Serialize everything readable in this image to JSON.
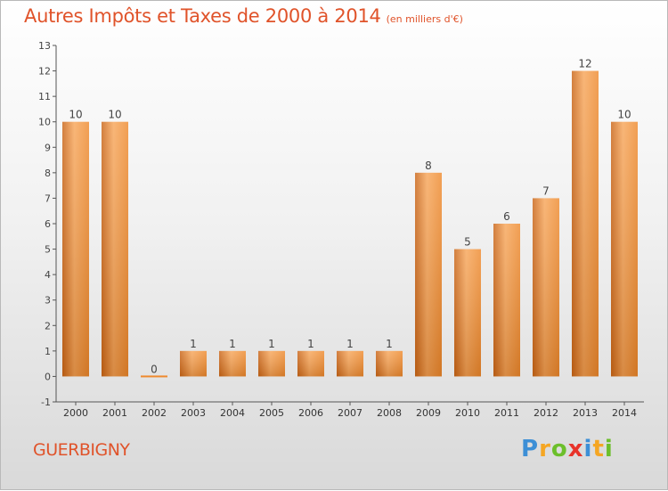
{
  "title": "Autres Impôts et Taxes de 2000 à 2014",
  "subtitle": "(en milliers d'€)",
  "commune": "GUERBIGNY",
  "logo": {
    "text": "Proxiti",
    "colors": [
      "#3d8fd6",
      "#f5a623",
      "#6cbf2b",
      "#e8332a",
      "#3d8fd6",
      "#f5a623",
      "#6cbf2b"
    ]
  },
  "chart_data": {
    "type": "bar",
    "categories": [
      "2000",
      "2001",
      "2002",
      "2003",
      "2004",
      "2005",
      "2006",
      "2007",
      "2008",
      "2009",
      "2010",
      "2011",
      "2012",
      "2013",
      "2014"
    ],
    "values": [
      10,
      10,
      0,
      1,
      1,
      1,
      1,
      1,
      1,
      8,
      5,
      6,
      7,
      12,
      10
    ],
    "ylim": [
      -1,
      13
    ],
    "yticks": [
      -1,
      0,
      1,
      2,
      3,
      4,
      5,
      6,
      7,
      8,
      9,
      10,
      11,
      12,
      13
    ],
    "grid": false,
    "legend": "none",
    "bar_color": "#ee8a2e",
    "bar_color_light": "#f7a65a",
    "bar_color_dark": "#c96416"
  }
}
